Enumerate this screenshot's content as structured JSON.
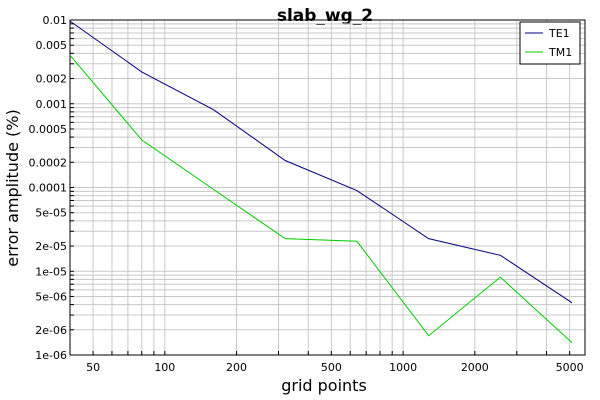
{
  "chart_data": {
    "type": "line",
    "title": "slab_wg_2",
    "xlabel": "grid points",
    "ylabel": "error amplitude (%)",
    "xscale": "log",
    "yscale": "log",
    "xlim": [
      40,
      5800
    ],
    "ylim": [
      1e-06,
      0.01
    ],
    "grid": true,
    "legend_position": "top-right",
    "x": [
      40,
      80,
      160,
      320,
      640,
      1280,
      2560,
      5120
    ],
    "x_ticks": [
      {
        "value": 50,
        "label": "50"
      },
      {
        "value": 100,
        "label": "100"
      },
      {
        "value": 200,
        "label": "200"
      },
      {
        "value": 500,
        "label": "500"
      },
      {
        "value": 1000,
        "label": "1000"
      },
      {
        "value": 2000,
        "label": "2000"
      },
      {
        "value": 5000,
        "label": "5000"
      }
    ],
    "y_ticks": [
      {
        "value": 0.01,
        "label": "0.01"
      },
      {
        "value": 0.005,
        "label": "0.005"
      },
      {
        "value": 0.002,
        "label": "0.002"
      },
      {
        "value": 0.001,
        "label": "0.001"
      },
      {
        "value": 0.0005,
        "label": "0.0005"
      },
      {
        "value": 0.0002,
        "label": "0.0002"
      },
      {
        "value": 0.0001,
        "label": "0.0001"
      },
      {
        "value": 5e-05,
        "label": "5e-05"
      },
      {
        "value": 2e-05,
        "label": "2e-05"
      },
      {
        "value": 1e-05,
        "label": "1e-05"
      },
      {
        "value": 5e-06,
        "label": "5e-06"
      },
      {
        "value": 2e-06,
        "label": "2e-06"
      },
      {
        "value": 1e-06,
        "label": "1e-06"
      }
    ],
    "series": [
      {
        "name": "TE1",
        "color": "#00007f",
        "values": [
          0.0097,
          0.0024,
          0.00085,
          0.00021,
          9.2e-05,
          2.45e-05,
          1.55e-05,
          4.2e-06
        ]
      },
      {
        "name": "TM1",
        "color": "#00cc00",
        "values": [
          0.0038,
          0.00037,
          9.5e-05,
          2.45e-05,
          2.28e-05,
          1.7e-06,
          8.5e-06,
          1.4e-06
        ]
      }
    ]
  }
}
